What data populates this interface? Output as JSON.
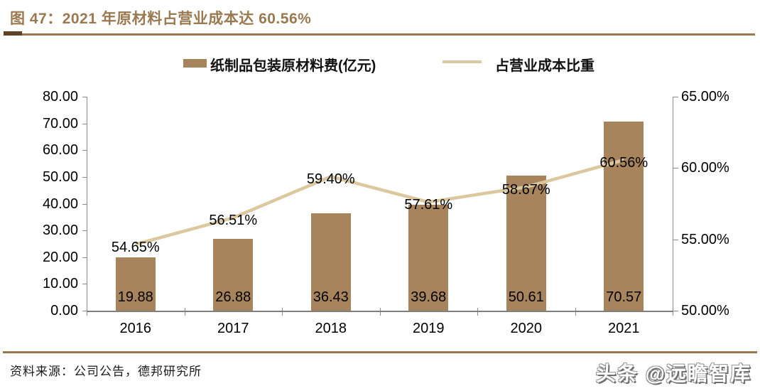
{
  "figure": {
    "title": "图 47：2021 年原材料占营业成本达 60.56%",
    "source": "资料来源：公司公告，德邦研究所",
    "watermark": "头条 @远瞻智库"
  },
  "chart_data": {
    "type": "bar+line",
    "categories": [
      "2016",
      "2017",
      "2018",
      "2019",
      "2020",
      "2021"
    ],
    "series": [
      {
        "name": "纸制品包装原材料费(亿元)",
        "type": "bar",
        "axis": "left",
        "values": [
          19.88,
          26.88,
          36.43,
          39.68,
          50.61,
          70.57
        ],
        "label_format": "0.00"
      },
      {
        "name": "占营业成本比重",
        "type": "line",
        "axis": "right",
        "values": [
          54.65,
          56.51,
          59.4,
          57.61,
          58.67,
          60.56
        ],
        "label_format": "0.00%"
      }
    ],
    "left_axis": {
      "min": 0,
      "max": 80,
      "step": 10,
      "tick_labels": [
        "80.00",
        "70.00",
        "60.00",
        "50.00",
        "40.00",
        "30.00",
        "20.00",
        "10.00",
        "0.00"
      ]
    },
    "right_axis": {
      "min": 50,
      "max": 65,
      "step": 5,
      "tick_labels": [
        "65.00%",
        "60.00%",
        "55.00%",
        "50.00%"
      ]
    },
    "legend_position": "top",
    "grid": false
  },
  "colors": {
    "bar": "#a7845c",
    "line": "#dcc89e",
    "title": "#9a7950",
    "rule": "#9a7950",
    "rule_accent": "#5f4126",
    "axis": "#8c8c8c",
    "label_text": "#000000"
  }
}
